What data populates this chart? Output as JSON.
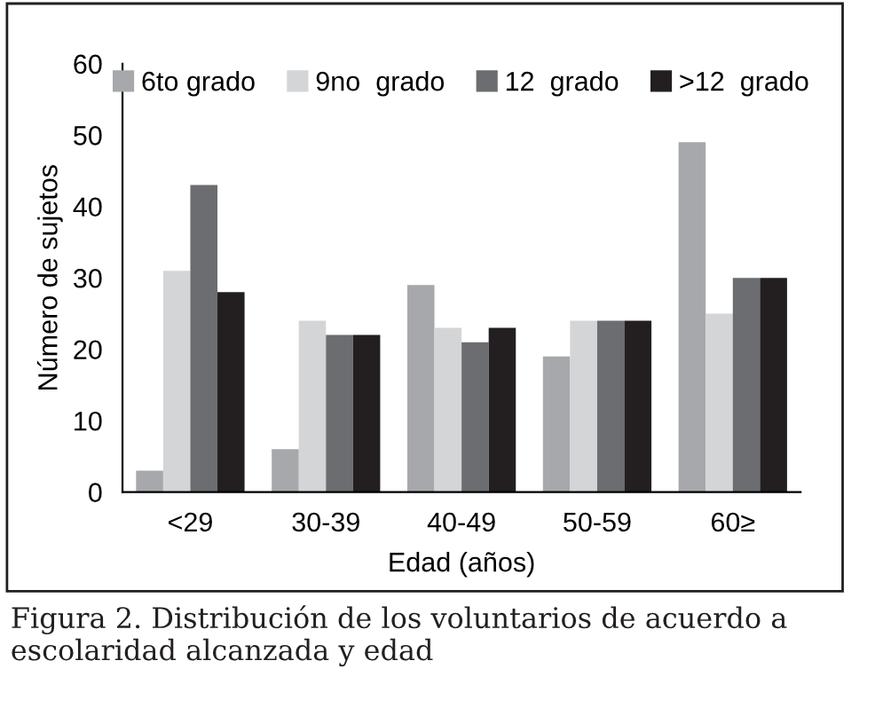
{
  "chart_data": {
    "type": "bar",
    "xlabel": "Edad (años)",
    "ylabel": "Número de sujetos",
    "categories": [
      "<29",
      "30-39",
      "40-49",
      "50-59",
      "60≥"
    ],
    "series": [
      {
        "name": "6to grado",
        "color": "#a7a8ab",
        "values": [
          3,
          6,
          29,
          19,
          49
        ]
      },
      {
        "name": "9no  grado",
        "color": "#d4d5d7",
        "values": [
          31,
          24,
          23,
          24,
          25
        ]
      },
      {
        "name": "12  grado",
        "color": "#6c6d70",
        "values": [
          43,
          22,
          21,
          24,
          30
        ]
      },
      {
        "name": ">12  grado",
        "color": "#231f20",
        "values": [
          28,
          22,
          23,
          24,
          30
        ]
      }
    ],
    "ylim": [
      0,
      60
    ],
    "yticks": [
      0,
      10,
      20,
      30,
      40,
      50,
      60
    ],
    "grid": false,
    "legend": "top",
    "annotations": [
      "Figura 2. Distribución de los voluntarios de acuerdo a escolaridad alcanzada y edad"
    ]
  }
}
